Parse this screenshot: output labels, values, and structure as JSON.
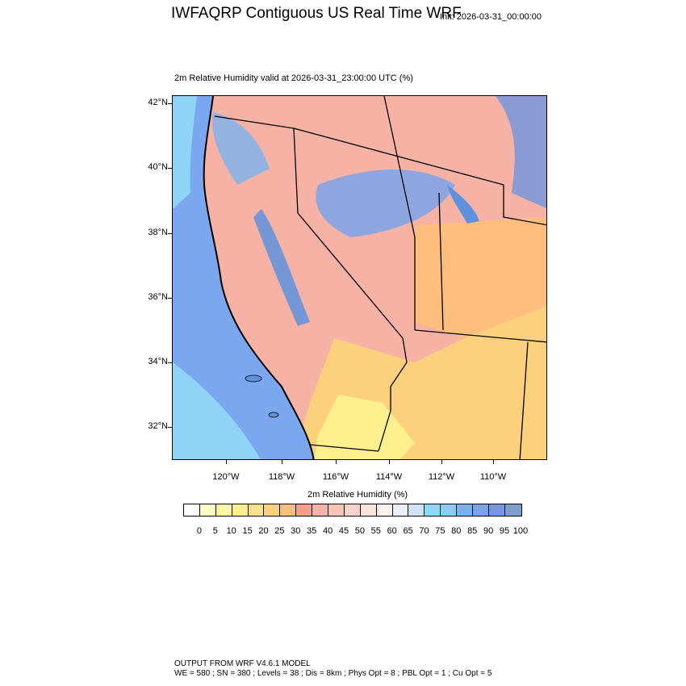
{
  "header": {
    "title": "IWFAQRP Contiguous US Real Time WRF",
    "init": "Init: 2026-03-31_00:00:00",
    "subtitle": "2m Relative Humidity valid at 2026-03-31_23:00:00 UTC   (%)"
  },
  "map": {
    "field": "2m Relative Humidity",
    "units": "%",
    "lat_labels": [
      "42°N",
      "40°N",
      "38°N",
      "36°N",
      "34°N",
      "32°N"
    ],
    "lon_labels": [
      "120°W",
      "118°W",
      "116°W",
      "114°W",
      "112°W",
      "110°W"
    ],
    "colors": {
      "ocean": "#7aa7ef",
      "coastal_ocean": "#8fd3f7",
      "dry": "#f5a98c",
      "very_dry": "#fcd17e",
      "desert": "#fdeb9d",
      "moist": "#5e92df",
      "border": "#000000"
    }
  },
  "colorbar": {
    "title": "2m Relative Humidity  (%)",
    "labels": [
      "0",
      "5",
      "10",
      "15",
      "20",
      "25",
      "30",
      "35",
      "40",
      "45",
      "50",
      "55",
      "60",
      "65",
      "70",
      "75",
      "80",
      "85",
      "90",
      "95",
      "100"
    ],
    "colors": [
      "#ffffff",
      "#fefcc6",
      "#fef9a6",
      "#fef08d",
      "#fde386",
      "#fdd07e",
      "#fdbe7e",
      "#f9a084",
      "#f6b2a4",
      "#f6c3b4",
      "#f9d4c7",
      "#fbe3d9",
      "#fdf2ed",
      "#e9ecfb",
      "#d1e1f9",
      "#8fd8f7",
      "#8ccdf6",
      "#7ab1ef",
      "#7aa3ea",
      "#7797dd",
      "#7d9fce"
    ]
  },
  "footer": {
    "line1": "OUTPUT FROM WRF V4.6.1 MODEL",
    "line2": "WE = 580 ; SN = 380 ; Levels = 38 ; Dis = 8km ; Phys Opt = 8 ; PBL Opt = 1 ; Cu Opt = 5"
  }
}
